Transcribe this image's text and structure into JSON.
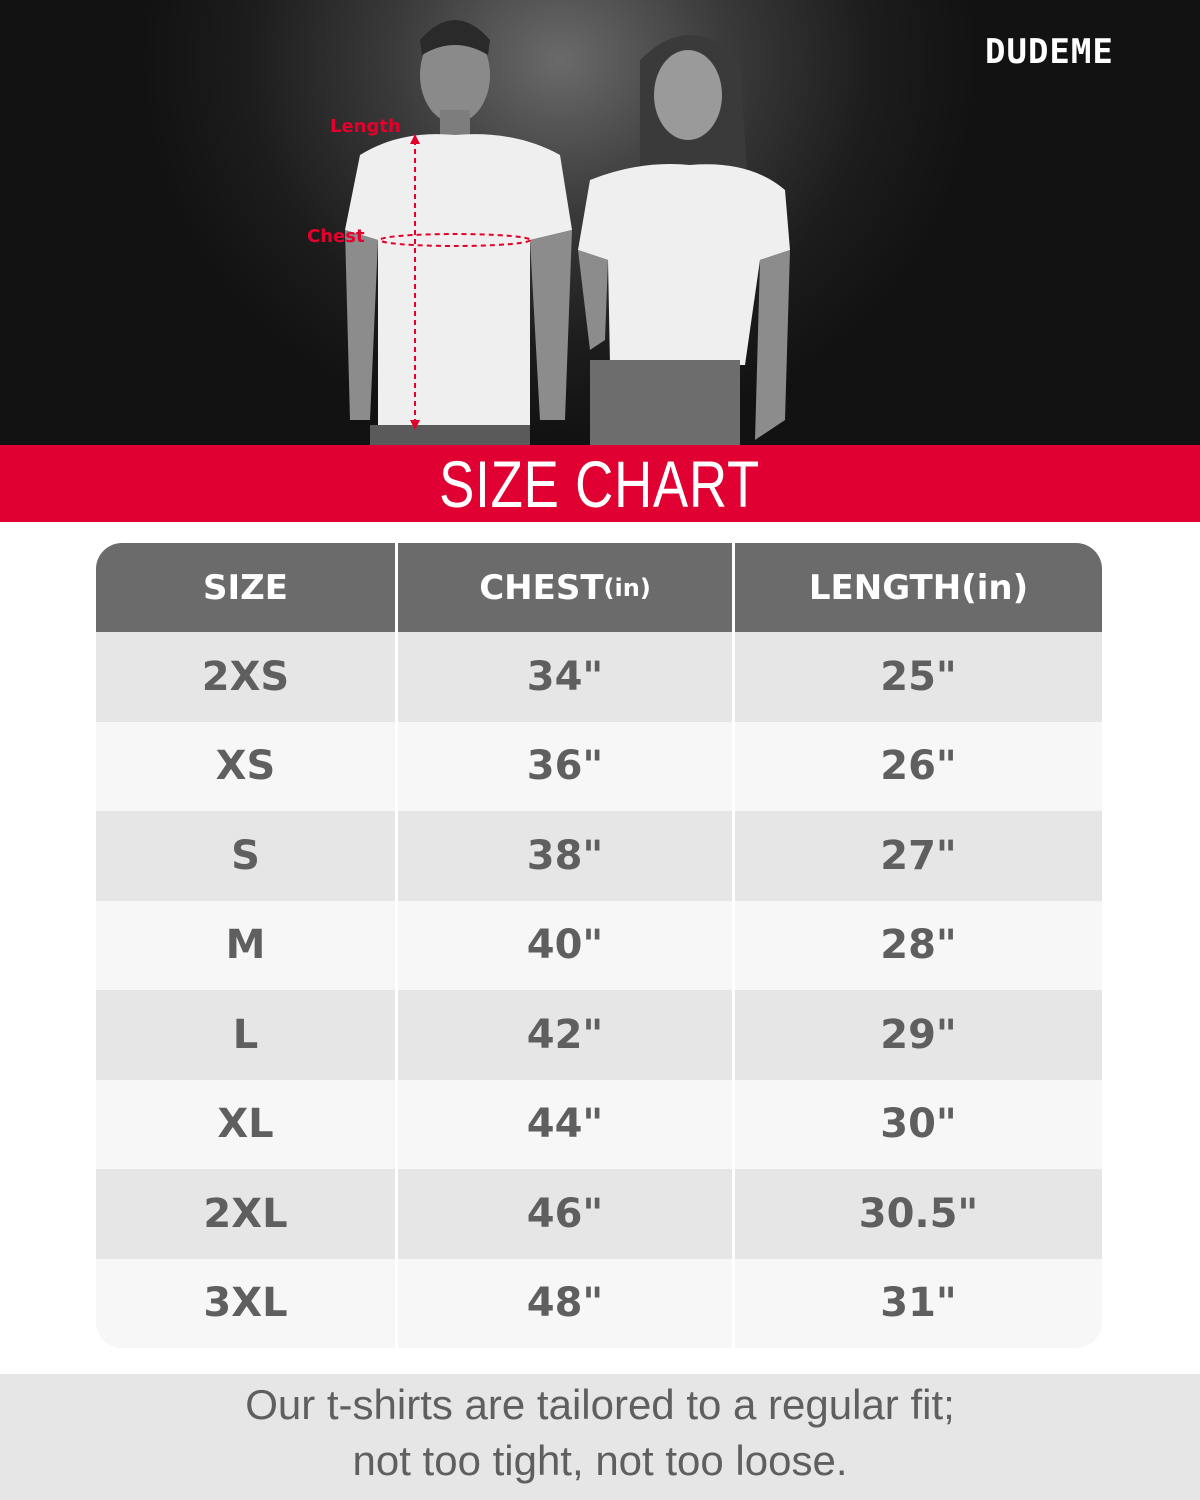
{
  "brand": {
    "logo": "DUDEME"
  },
  "photo": {
    "labels": {
      "length": "Length",
      "chest": "Chest"
    },
    "accent": "#e4002b"
  },
  "banner": {
    "title": "SIZE CHART",
    "color": "#e10032"
  },
  "table": {
    "headers": [
      {
        "main": "SIZE",
        "unit": ""
      },
      {
        "main": "CHEST",
        "unit": "(in)"
      },
      {
        "main": "LENGTH",
        "unit": "(in)"
      }
    ],
    "rows": [
      [
        "2XS",
        "34\"",
        "25\""
      ],
      [
        "XS",
        "36\"",
        "26\""
      ],
      [
        "S",
        "38\"",
        "27\""
      ],
      [
        "M",
        "40\"",
        "28\""
      ],
      [
        "L",
        "42\"",
        "29\""
      ],
      [
        "XL",
        "44\"",
        "30\""
      ],
      [
        "2XL",
        "46\"",
        "30.5\""
      ],
      [
        "3XL",
        "48\"",
        "31\""
      ]
    ]
  },
  "footer": {
    "line1": "Our t-shirts are tailored to a regular fit;",
    "line2": "not too tight, not too loose."
  }
}
